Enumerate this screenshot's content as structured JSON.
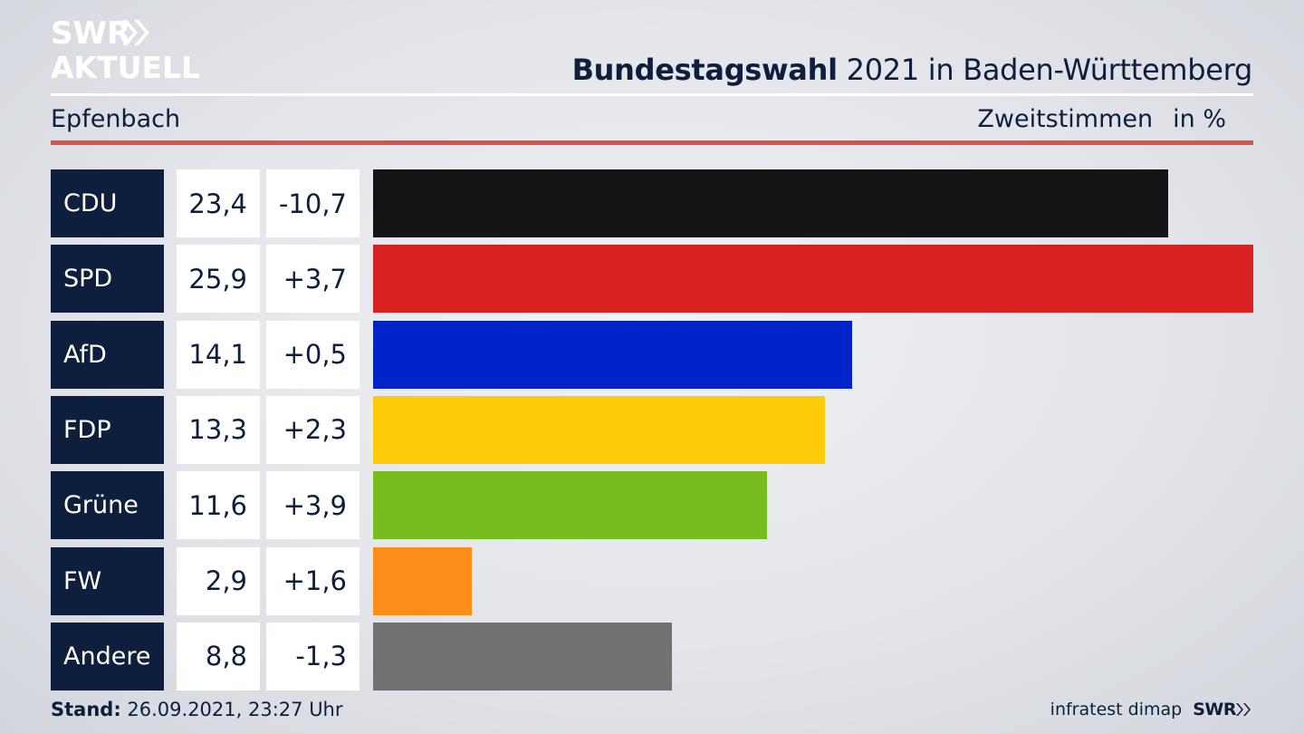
{
  "header": {
    "logo_line1": "SWR",
    "logo_line2": "AKTUELL",
    "title_bold": "Bundestagswahl",
    "title_rest": "2021 in Baden-Württemberg",
    "subtitle": "Epfenbach",
    "measure": "Zweitstimmen",
    "unit": "in %"
  },
  "chart_data": {
    "type": "bar",
    "orientation": "horizontal",
    "categories": [
      "CDU",
      "SPD",
      "AfD",
      "FDP",
      "Grüne",
      "FW",
      "Andere"
    ],
    "series": [
      {
        "values": [
          23.4,
          25.9,
          14.1,
          13.3,
          11.6,
          2.9,
          8.8
        ]
      }
    ],
    "value_labels": [
      "23,4",
      "25,9",
      "14,1",
      "13,3",
      "11,6",
      "2,9",
      "8,8"
    ],
    "change_labels": [
      "-10,7",
      "+3,7",
      "+0,5",
      "+2,3",
      "+3,9",
      "+1,6",
      "-1,3"
    ],
    "colors": [
      "#141414",
      "#d82020",
      "#0024c9",
      "#fdcb0a",
      "#76bd1d",
      "#fd8c19",
      "#717173"
    ],
    "xlim": [
      0,
      25.9
    ],
    "grid": false,
    "legend": "none"
  },
  "footer": {
    "stand_label": "Stand:",
    "stand_value": "26.09.2021, 23:27 Uhr",
    "source": "infratest dimap",
    "brand": "SWR"
  },
  "colors": {
    "navy": "#0d1f3c",
    "accent_red": "#d9534a"
  }
}
